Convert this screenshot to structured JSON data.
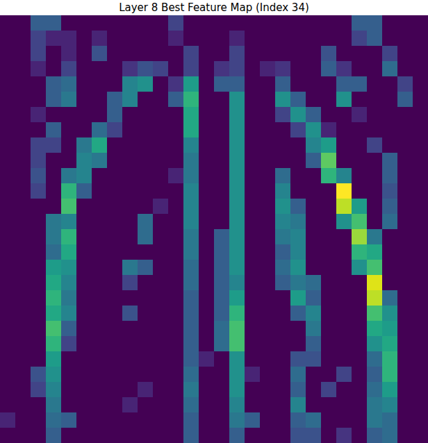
{
  "chart_data": {
    "type": "heatmap",
    "title": "Layer 8 Best Feature Map (Index 34)",
    "color": "viridis",
    "tick_labels": false,
    "cells": [
      [
        0,
        0,
        0.3,
        0.3,
        0,
        0,
        0,
        0,
        0,
        0,
        0,
        0.2,
        0,
        0,
        0,
        0,
        0,
        0,
        0,
        0,
        0,
        0,
        0,
        0.3,
        0.3,
        0,
        0,
        0
      ],
      [
        0,
        0,
        0.2,
        0.1,
        0.1,
        0,
        0.1,
        0,
        0,
        0,
        0,
        0.1,
        0,
        0,
        0,
        0.1,
        0,
        0,
        0,
        0,
        0,
        0,
        0,
        0.2,
        0.3,
        0,
        0,
        0
      ],
      [
        0,
        0,
        0.2,
        0,
        0.1,
        0,
        0.25,
        0,
        0,
        0,
        0,
        0,
        0.2,
        0,
        0,
        0.2,
        0,
        0,
        0,
        0,
        0,
        0.25,
        0,
        0,
        0,
        0.2,
        0,
        0
      ],
      [
        0,
        0,
        0.1,
        0,
        0.2,
        0,
        0,
        0,
        0.15,
        0.25,
        0.2,
        0,
        0.2,
        0,
        0.15,
        0.2,
        0,
        0.1,
        0.15,
        0,
        0,
        0.3,
        0.15,
        0,
        0,
        0.35,
        0,
        0
      ],
      [
        0,
        0,
        0,
        0.3,
        0.35,
        0,
        0,
        0,
        0.45,
        0.5,
        0,
        0.15,
        0.55,
        0,
        0.3,
        0.3,
        0,
        0,
        0.3,
        0,
        0,
        0,
        0.3,
        0.3,
        0,
        0,
        0.2,
        0
      ],
      [
        0,
        0,
        0,
        0.3,
        0.4,
        0,
        0,
        0.3,
        0.45,
        0,
        0,
        0.3,
        0.65,
        0,
        0,
        0.5,
        0,
        0,
        0.5,
        0.3,
        0,
        0,
        0.5,
        0,
        0,
        0,
        0.3,
        0
      ],
      [
        0,
        0,
        0.1,
        0,
        0,
        0,
        0,
        0.3,
        0,
        0,
        0,
        0,
        0.6,
        0,
        0,
        0.5,
        0,
        0,
        0.2,
        0.5,
        0.3,
        0,
        0,
        0.1,
        0,
        0,
        0,
        0
      ],
      [
        0,
        0,
        0,
        0.3,
        0,
        0,
        0.35,
        0.2,
        0,
        0,
        0,
        0,
        0.6,
        0,
        0,
        0.5,
        0,
        0,
        0,
        0.2,
        0.5,
        0.1,
        0,
        0,
        0,
        0,
        0,
        0
      ],
      [
        0,
        0,
        0.2,
        0.2,
        0,
        0.4,
        0.6,
        0,
        0,
        0,
        0,
        0,
        0.45,
        0,
        0,
        0.5,
        0,
        0,
        0,
        0,
        0.45,
        0.55,
        0,
        0,
        0.2,
        0,
        0,
        0
      ],
      [
        0,
        0,
        0.2,
        0,
        0,
        0.45,
        0.4,
        0,
        0,
        0,
        0,
        0,
        0.4,
        0,
        0,
        0.5,
        0,
        0,
        0,
        0,
        0.3,
        0.75,
        0,
        0,
        0,
        0.3,
        0,
        0
      ],
      [
        0,
        0,
        0.25,
        0,
        0.4,
        0.45,
        0,
        0,
        0,
        0,
        0,
        0.1,
        0.4,
        0,
        0,
        0.5,
        0,
        0,
        0.35,
        0,
        0,
        0.65,
        0.45,
        0,
        0,
        0.3,
        0,
        0
      ],
      [
        0,
        0,
        0.2,
        0,
        0.65,
        0.3,
        0,
        0,
        0,
        0,
        0,
        0,
        0.45,
        0,
        0,
        0.5,
        0,
        0,
        0.45,
        0,
        0,
        0,
        1,
        0,
        0,
        0.25,
        0,
        0
      ],
      [
        0,
        0,
        0,
        0,
        0.7,
        0,
        0,
        0,
        0,
        0,
        0.1,
        0,
        0.45,
        0,
        0,
        0.5,
        0,
        0,
        0.5,
        0.3,
        0,
        0,
        0.9,
        0.55,
        0,
        0.3,
        0,
        0
      ],
      [
        0,
        0,
        0,
        0.4,
        0.45,
        0,
        0,
        0,
        0,
        0.35,
        0,
        0,
        0.45,
        0,
        0,
        0.5,
        0,
        0,
        0.45,
        0.4,
        0,
        0,
        0.5,
        0.7,
        0,
        0.35,
        0,
        0
      ],
      [
        0,
        0,
        0,
        0.4,
        0.65,
        0,
        0,
        0,
        0,
        0.35,
        0,
        0,
        0.4,
        0,
        0.3,
        0.5,
        0,
        0,
        0.4,
        0.45,
        0,
        0,
        0,
        0.85,
        0.4,
        0,
        0,
        0
      ],
      [
        0,
        0,
        0,
        0.35,
        0.6,
        0,
        0,
        0,
        0,
        0,
        0,
        0,
        0.4,
        0,
        0.3,
        0.5,
        0,
        0,
        0.3,
        0.45,
        0,
        0,
        0,
        0.65,
        0.6,
        0,
        0,
        0
      ],
      [
        0,
        0,
        0,
        0.55,
        0.5,
        0,
        0,
        0,
        0.4,
        0.3,
        0,
        0,
        0.35,
        0,
        0.3,
        0.5,
        0,
        0,
        0.35,
        0.5,
        0,
        0,
        0,
        0.5,
        0.7,
        0,
        0,
        0
      ],
      [
        0,
        0,
        0,
        0.6,
        0.45,
        0,
        0,
        0,
        0.2,
        0,
        0,
        0,
        0.35,
        0,
        0.3,
        0.45,
        0,
        0,
        0.3,
        0.4,
        0.35,
        0,
        0,
        0,
        0.95,
        0,
        0,
        0
      ],
      [
        0,
        0,
        0,
        0.65,
        0.4,
        0,
        0,
        0,
        0,
        0,
        0,
        0,
        0.3,
        0,
        0.3,
        0.55,
        0,
        0,
        0,
        0.55,
        0.3,
        0,
        0,
        0,
        0.9,
        0.35,
        0,
        0
      ],
      [
        0,
        0,
        0,
        0.6,
        0.45,
        0,
        0,
        0,
        0.25,
        0,
        0,
        0,
        0.3,
        0,
        0.3,
        0.65,
        0,
        0,
        0,
        0.3,
        0.45,
        0,
        0,
        0,
        0.7,
        0.5,
        0,
        0
      ],
      [
        0,
        0,
        0,
        0.7,
        0.3,
        0,
        0,
        0,
        0,
        0,
        0,
        0,
        0.3,
        0,
        0.35,
        0.7,
        0,
        0,
        0,
        0,
        0.4,
        0,
        0,
        0,
        0.6,
        0.55,
        0,
        0
      ],
      [
        0,
        0,
        0,
        0.65,
        0.2,
        0,
        0,
        0,
        0,
        0,
        0,
        0,
        0.3,
        0,
        0.35,
        0.7,
        0,
        0,
        0,
        0,
        0.3,
        0,
        0,
        0,
        0.5,
        0.6,
        0,
        0
      ],
      [
        0,
        0,
        0,
        0.55,
        0,
        0,
        0,
        0,
        0,
        0,
        0,
        0,
        0.3,
        0.1,
        0,
        0.5,
        0,
        0,
        0,
        0.25,
        0.25,
        0,
        0,
        0,
        0.35,
        0.65,
        0,
        0
      ],
      [
        0,
        0,
        0.25,
        0.5,
        0,
        0,
        0,
        0,
        0,
        0,
        0,
        0,
        0.35,
        0,
        0,
        0.5,
        0.1,
        0,
        0,
        0.35,
        0,
        0,
        0.2,
        0,
        0.3,
        0.65,
        0,
        0
      ],
      [
        0,
        0,
        0.2,
        0.45,
        0,
        0,
        0,
        0,
        0,
        0.1,
        0,
        0,
        0.4,
        0,
        0,
        0.5,
        0,
        0,
        0,
        0.3,
        0,
        0.2,
        0,
        0,
        0.35,
        0.55,
        0,
        0
      ],
      [
        0,
        0,
        0,
        0.4,
        0,
        0,
        0,
        0,
        0.1,
        0,
        0,
        0,
        0.35,
        0,
        0,
        0.45,
        0,
        0,
        0,
        0.45,
        0,
        0,
        0,
        0,
        0.4,
        0.45,
        0,
        0
      ],
      [
        0.1,
        0,
        0,
        0.35,
        0.3,
        0,
        0,
        0,
        0,
        0,
        0,
        0,
        0.3,
        0,
        0,
        0.4,
        0.3,
        0,
        0,
        0.3,
        0.35,
        0,
        0,
        0,
        0.4,
        0.35,
        0,
        0
      ],
      [
        0,
        0,
        0,
        0.3,
        0,
        0,
        0,
        0,
        0,
        0,
        0,
        0,
        0.3,
        0,
        0,
        0.3,
        0,
        0,
        0,
        0.25,
        0.25,
        0,
        0.15,
        0,
        0.3,
        0.35,
        0,
        0
      ]
    ]
  }
}
